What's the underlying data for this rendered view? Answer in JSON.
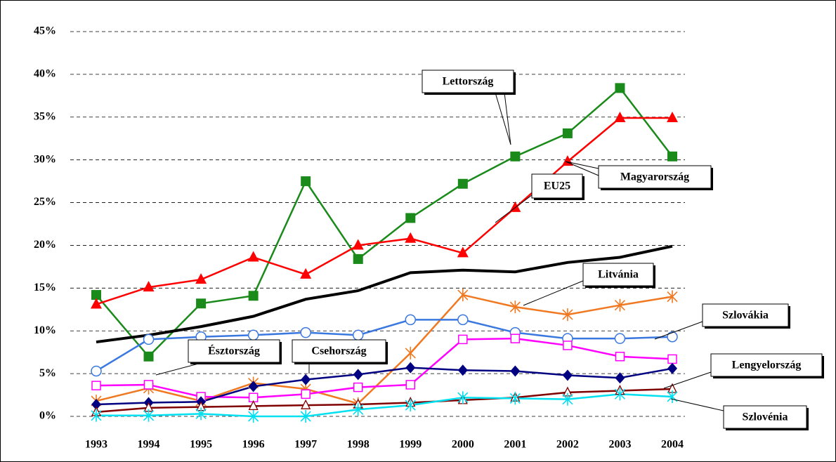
{
  "chart_data": {
    "type": "line",
    "categories": [
      "1993",
      "1994",
      "1995",
      "1996",
      "1997",
      "1998",
      "1999",
      "2000",
      "2001",
      "2002",
      "2003",
      "2004"
    ],
    "ylim": [
      0,
      45
    ],
    "yticks": [
      {
        "value": 0,
        "label": "0%"
      },
      {
        "value": 5,
        "label": "5%"
      },
      {
        "value": 10,
        "label": "10%"
      },
      {
        "value": 15,
        "label": "15%"
      },
      {
        "value": 20,
        "label": "20%"
      },
      {
        "value": 25,
        "label": "25%"
      },
      {
        "value": 30,
        "label": "30%"
      },
      {
        "value": 35,
        "label": "35%"
      },
      {
        "value": 40,
        "label": "40%"
      },
      {
        "value": 45,
        "label": "45%"
      }
    ],
    "grid": true,
    "series": [
      {
        "name": "Lettország",
        "color": "#1a8a1a",
        "marker": "square",
        "values": [
          14.2,
          7.0,
          13.2,
          14.1,
          27.5,
          18.4,
          23.2,
          27.2,
          30.4,
          33.1,
          38.4,
          30.4
        ]
      },
      {
        "name": "Magyarország",
        "color": "#ff0000",
        "marker": "triangle",
        "values": [
          13.1,
          15.1,
          16.0,
          18.6,
          16.6,
          20.0,
          20.8,
          19.1,
          24.4,
          29.8,
          34.9,
          34.9
        ]
      },
      {
        "name": "EU25",
        "color": "#000000",
        "marker": "none",
        "values": [
          8.7,
          9.5,
          10.5,
          11.7,
          13.7,
          14.7,
          16.8,
          17.1,
          16.9,
          18.0,
          18.6,
          19.9
        ]
      },
      {
        "name": "Litvánia",
        "color": "#f07820",
        "marker": "asterisk",
        "values": [
          1.8,
          3.3,
          1.8,
          3.9,
          3.2,
          1.5,
          7.4,
          14.2,
          12.8,
          11.9,
          13.0,
          14.0
        ]
      },
      {
        "name": "Szlovákia",
        "color": "#3a78e0",
        "marker": "circle",
        "values": [
          5.3,
          9.0,
          9.3,
          9.5,
          9.8,
          9.5,
          11.3,
          11.3,
          9.8,
          9.1,
          9.1,
          9.3
        ]
      },
      {
        "name": "Észtország",
        "color": "#ff00ff",
        "marker": "open-square",
        "values": [
          3.6,
          3.7,
          2.3,
          2.2,
          2.6,
          3.4,
          3.7,
          9.0,
          9.1,
          8.3,
          7.0,
          6.7
        ]
      },
      {
        "name": "Csehország",
        "color": "#000080",
        "marker": "diamond",
        "values": [
          1.4,
          1.6,
          1.7,
          3.5,
          4.3,
          4.9,
          5.7,
          5.4,
          5.3,
          4.8,
          4.5,
          5.6
        ]
      },
      {
        "name": "Lengyelország",
        "color": "#800000",
        "marker": "open-triangle",
        "values": [
          0.5,
          1.0,
          1.1,
          1.2,
          1.3,
          1.4,
          1.6,
          1.9,
          2.2,
          2.8,
          3.0,
          3.2
        ]
      },
      {
        "name": "Szlovénia",
        "color": "#00e0f0",
        "marker": "star",
        "values": [
          0.1,
          0.1,
          0.3,
          0.0,
          0.0,
          0.8,
          1.3,
          2.2,
          2.1,
          2.0,
          2.6,
          2.3
        ]
      }
    ]
  }
}
